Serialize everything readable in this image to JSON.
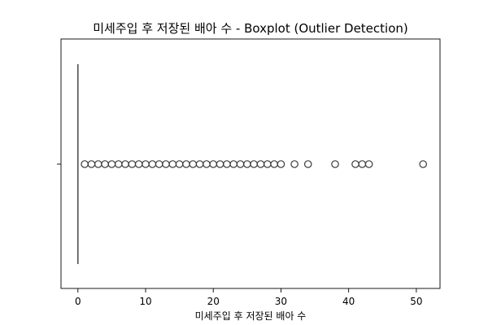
{
  "chart_data": {
    "type": "boxplot",
    "title": "미세주입 후 저장된 배아 수 - Boxplot (Outlier Detection)",
    "xlabel": "미세주입 후 저장된 배아 수",
    "ylabel": "",
    "orientation": "horizontal",
    "xlim": [
      -2.5,
      53.5
    ],
    "xticks": [
      0,
      10,
      20,
      30,
      40,
      50
    ],
    "xtick_labels": [
      "0",
      "10",
      "20",
      "30",
      "40",
      "50"
    ],
    "box": {
      "min": 0,
      "q1": 0,
      "median": 0,
      "q3": 0,
      "max": 0
    },
    "outliers": [
      1,
      2,
      3,
      4,
      5,
      6,
      7,
      8,
      9,
      10,
      11,
      12,
      13,
      14,
      15,
      16,
      17,
      18,
      19,
      20,
      21,
      22,
      23,
      24,
      25,
      26,
      27,
      28,
      29,
      30,
      32,
      34,
      38,
      41,
      42,
      43,
      51
    ],
    "grid": false,
    "legend": "none",
    "colors": {
      "box": "#3a3a3a",
      "frame": "#000000",
      "background": "#ffffff"
    }
  }
}
